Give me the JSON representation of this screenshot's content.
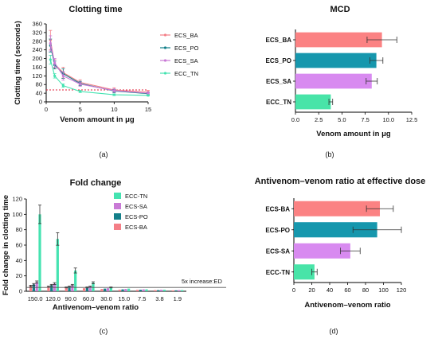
{
  "chart_data": [
    {
      "id": "a",
      "type": "line",
      "title": "Clotting time",
      "xlabel": "Venom amount in μg",
      "ylabel": "Clotting time (seconds)",
      "xlim": [
        0,
        15
      ],
      "ylim": [
        0,
        360
      ],
      "xticks": [
        "0",
        "5",
        "10",
        "15"
      ],
      "yticks": [
        "0",
        "40",
        "80",
        "120",
        "160",
        "200",
        "240",
        "280",
        "320",
        "360"
      ],
      "x": [
        0.625,
        1.25,
        2.5,
        5,
        10,
        15
      ],
      "reference_line": 55,
      "series": [
        {
          "name": "ECS_BA",
          "color": "#f47f87",
          "values": [
            285,
            175,
            135,
            90,
            55,
            45
          ],
          "err": [
            45,
            20,
            25,
            12,
            10,
            8
          ]
        },
        {
          "name": "ECS_PO",
          "color": "#14808a",
          "values": [
            260,
            170,
            130,
            85,
            50,
            38
          ],
          "err": [
            30,
            18,
            22,
            10,
            8,
            6
          ]
        },
        {
          "name": "ECS_SA",
          "color": "#c97ad6",
          "values": [
            270,
            180,
            120,
            82,
            52,
            40
          ],
          "err": [
            35,
            20,
            20,
            10,
            8,
            6
          ]
        },
        {
          "name": "ECC_TN",
          "color": "#45e3b1",
          "values": [
            195,
            120,
            75,
            48,
            33,
            30
          ],
          "err": [
            20,
            10,
            8,
            5,
            4,
            3
          ]
        }
      ],
      "caption": "(a)"
    },
    {
      "id": "b",
      "type": "bar",
      "orientation": "horizontal",
      "title": "MCD",
      "xlabel": "Venom amount in μg",
      "xlim": [
        0,
        12.5
      ],
      "xticks": [
        "0.0",
        "2.5",
        "5.0",
        "7.5",
        "10.0",
        "12.5"
      ],
      "categories": [
        "ECS_BA",
        "ECS_PO",
        "ECS_SA",
        "ECC_TN"
      ],
      "values": [
        9.3,
        8.7,
        8.2,
        3.8
      ],
      "err": [
        1.6,
        0.7,
        0.6,
        0.2
      ],
      "colors": [
        "#fb8283",
        "#1697ad",
        "#d88af0",
        "#48e4a8"
      ],
      "caption": "(b)"
    },
    {
      "id": "c",
      "type": "bar",
      "title": "Fold change",
      "xlabel": "Antivenom–venom ratio",
      "ylabel": "Fold change in clotting time",
      "ylim": [
        0,
        120
      ],
      "yticks": [
        "0",
        "20",
        "40",
        "60",
        "80",
        "100",
        "120"
      ],
      "categories": [
        "150.0",
        "120.0",
        "90.0",
        "60.0",
        "30.0",
        "15.0",
        "7.5",
        "3.8",
        "1.9"
      ],
      "threshold": 5,
      "threshold_label": "5x increase:ED",
      "series": [
        {
          "name": "ECC-TN",
          "color": "#45e3b1",
          "values": [
            100,
            68,
            27,
            11,
            5,
            3.5,
            2.5,
            2,
            1.5
          ]
        },
        {
          "name": "ECS-SA",
          "color": "#c97ad6",
          "values": [
            12,
            10,
            8,
            6,
            4,
            3,
            2.5,
            2,
            1.5
          ]
        },
        {
          "name": "ECS-PO",
          "color": "#14808a",
          "values": [
            9,
            8,
            6,
            5,
            3.5,
            2.5,
            2,
            1.5,
            1.2
          ]
        },
        {
          "name": "ECS-BA",
          "color": "#f47f87",
          "values": [
            7,
            6,
            5,
            4,
            3,
            2,
            1.8,
            1.5,
            1.2
          ]
        }
      ],
      "caption": "(c)"
    },
    {
      "id": "d",
      "type": "bar",
      "orientation": "horizontal",
      "title": "Antivenom–venom ratio at effective dose",
      "xlabel": "Antivenom–venom ratio",
      "xlim": [
        0,
        120
      ],
      "xticks": [
        "0",
        "20",
        "40",
        "60",
        "80",
        "100",
        "120"
      ],
      "categories": [
        "ECS-BA",
        "ECS-PO",
        "ECS-SA",
        "ECC-TN"
      ],
      "values": [
        96,
        93,
        63,
        23
      ],
      "err": [
        15,
        27,
        11,
        3
      ],
      "colors": [
        "#fb8283",
        "#1697ad",
        "#d88af0",
        "#48e4a8"
      ],
      "caption": "(d)"
    }
  ]
}
